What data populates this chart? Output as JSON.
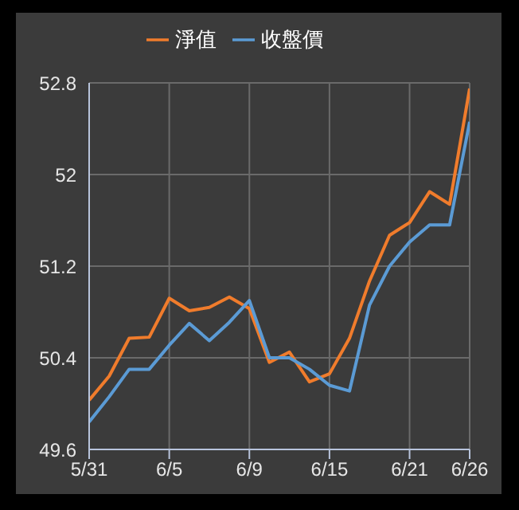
{
  "chart_data": {
    "type": "line",
    "categories": [
      "5/31",
      null,
      null,
      null,
      "6/5",
      null,
      null,
      null,
      "6/9",
      null,
      null,
      null,
      "6/15",
      null,
      null,
      null,
      "6/21",
      null,
      null,
      "6/26"
    ],
    "series": [
      {
        "name": "淨值",
        "color": "#f07c2c",
        "values": [
          50.03,
          50.24,
          50.57,
          50.58,
          50.92,
          50.81,
          50.84,
          50.93,
          50.83,
          50.36,
          50.45,
          50.19,
          50.26,
          50.57,
          51.07,
          51.47,
          51.58,
          51.85,
          51.74,
          52.75
        ]
      },
      {
        "name": "收盤價",
        "color": "#5b9bd5",
        "values": [
          49.84,
          50.06,
          50.3,
          50.3,
          50.51,
          50.7,
          50.55,
          50.71,
          50.9,
          50.4,
          50.4,
          50.3,
          50.16,
          50.11,
          50.86,
          51.2,
          51.41,
          51.56,
          51.56,
          52.46
        ]
      }
    ],
    "ylim": [
      49.6,
      52.8
    ],
    "yticks": [
      49.6,
      50.4,
      51.2,
      52,
      52.8
    ],
    "grid": true,
    "legend": "top",
    "marker": "none",
    "line_style": "solid"
  }
}
